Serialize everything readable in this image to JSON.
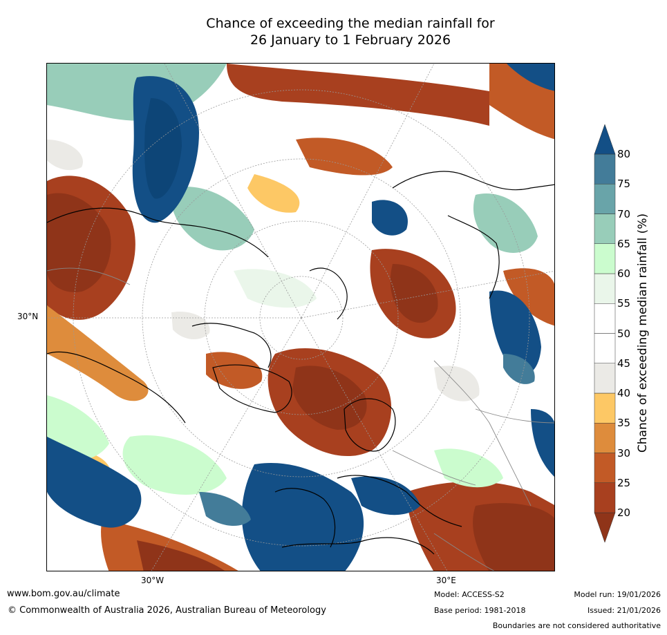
{
  "title": {
    "line1": "Chance of exceeding the median rainfall for",
    "line2": "26 January to 1 February 2026"
  },
  "map": {
    "projection": "north polar stereographic",
    "labels": {
      "lat_30n": "30°N",
      "lon_30w": "30°W",
      "lon_30e": "30°E"
    },
    "colors": {
      "ocean_background": "#ffffff",
      "coastline": "#000000",
      "boundary": "#888888"
    }
  },
  "colorbar": {
    "title": "Chance of exceeding median rainfall (%)",
    "ticks": [
      "20",
      "25",
      "30",
      "35",
      "40",
      "45",
      "50",
      "55",
      "60",
      "65",
      "70",
      "75",
      "80"
    ],
    "bins": [
      {
        "range": "<20",
        "color": "#8f3419"
      },
      {
        "range": "20-25",
        "color": "#a8401f"
      },
      {
        "range": "25-30",
        "color": "#c25a26"
      },
      {
        "range": "30-35",
        "color": "#de8c3c"
      },
      {
        "range": "35-40",
        "color": "#fdc865"
      },
      {
        "range": "40-45",
        "color": "#ebeae6"
      },
      {
        "range": "45-50",
        "color": "#ffffff"
      },
      {
        "range": "50-55",
        "color": "#ffffff"
      },
      {
        "range": "55-60",
        "color": "#eaf6ea"
      },
      {
        "range": "60-65",
        "color": "#cbfcce"
      },
      {
        "range": "65-70",
        "color": "#98cdb9"
      },
      {
        "range": "70-75",
        "color": "#69a4a9"
      },
      {
        "range": "75-80",
        "color": "#437c99"
      },
      {
        "range": ">80",
        "color": "#134f86"
      }
    ]
  },
  "footer": {
    "url": "www.bom.gov.au/climate",
    "copyright": "© Commonwealth of Australia 2026, Australian Bureau of Meteorology",
    "model": "Model: ACCESS-S2",
    "base_period": "Base period: 1981-2018",
    "model_run": "Model run: 19/01/2026",
    "issued": "Issued: 21/01/2026",
    "boundaries": "Boundaries are not considered authoritative"
  }
}
